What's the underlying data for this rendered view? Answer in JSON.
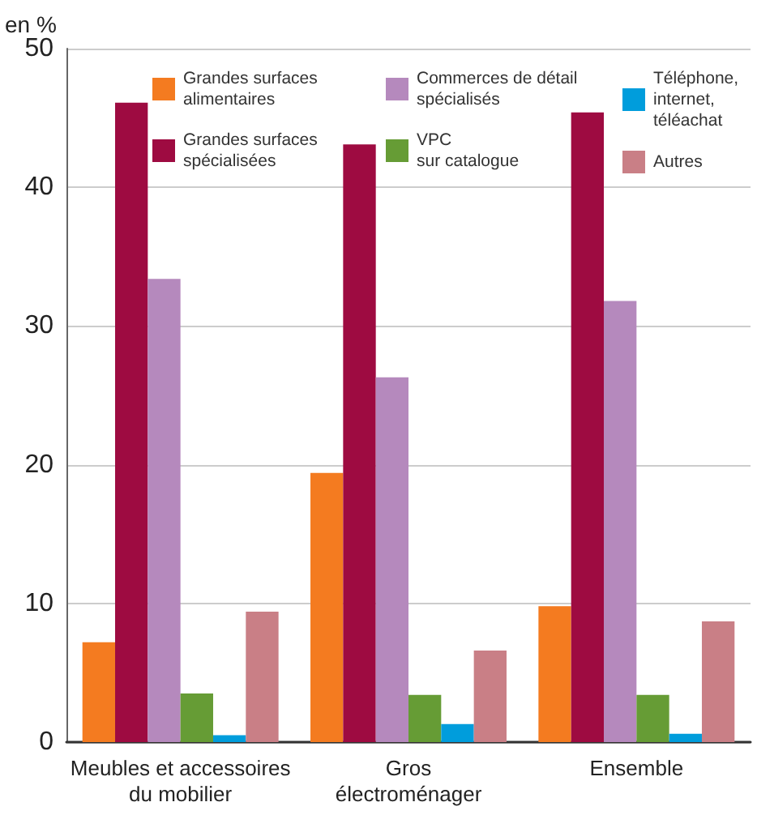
{
  "chart_data": {
    "type": "bar",
    "ylabel": "en %",
    "categories": [
      "Meubles et accessoires\ndu mobilier",
      "Gros\nélectroménager",
      "Ensemble"
    ],
    "series": [
      {
        "name": "Grandes surfaces\nalimentaires",
        "color": "#f47b20",
        "values": [
          7.2,
          19.4,
          9.8
        ]
      },
      {
        "name": "Grandes surfaces\nspécialisées",
        "color": "#9e0b41",
        "values": [
          46.1,
          43.1,
          45.4
        ]
      },
      {
        "name": "Commerces de détail\nspécialisés",
        "color": "#b589bd",
        "values": [
          33.4,
          26.3,
          31.8
        ]
      },
      {
        "name": "VPC\nsur catalogue",
        "color": "#669c35",
        "values": [
          3.5,
          3.4,
          3.4
        ]
      },
      {
        "name": "Téléphone,\ninternet,\ntéléachat",
        "color": "#009ddc",
        "values": [
          0.5,
          1.3,
          0.6
        ]
      },
      {
        "name": "Autres",
        "color": "#c97f86",
        "values": [
          9.4,
          6.6,
          8.7
        ]
      }
    ],
    "ylim": [
      0,
      50
    ],
    "yticks": [
      0,
      10,
      20,
      30,
      40,
      50
    ],
    "grid": "y",
    "legend": "top"
  }
}
